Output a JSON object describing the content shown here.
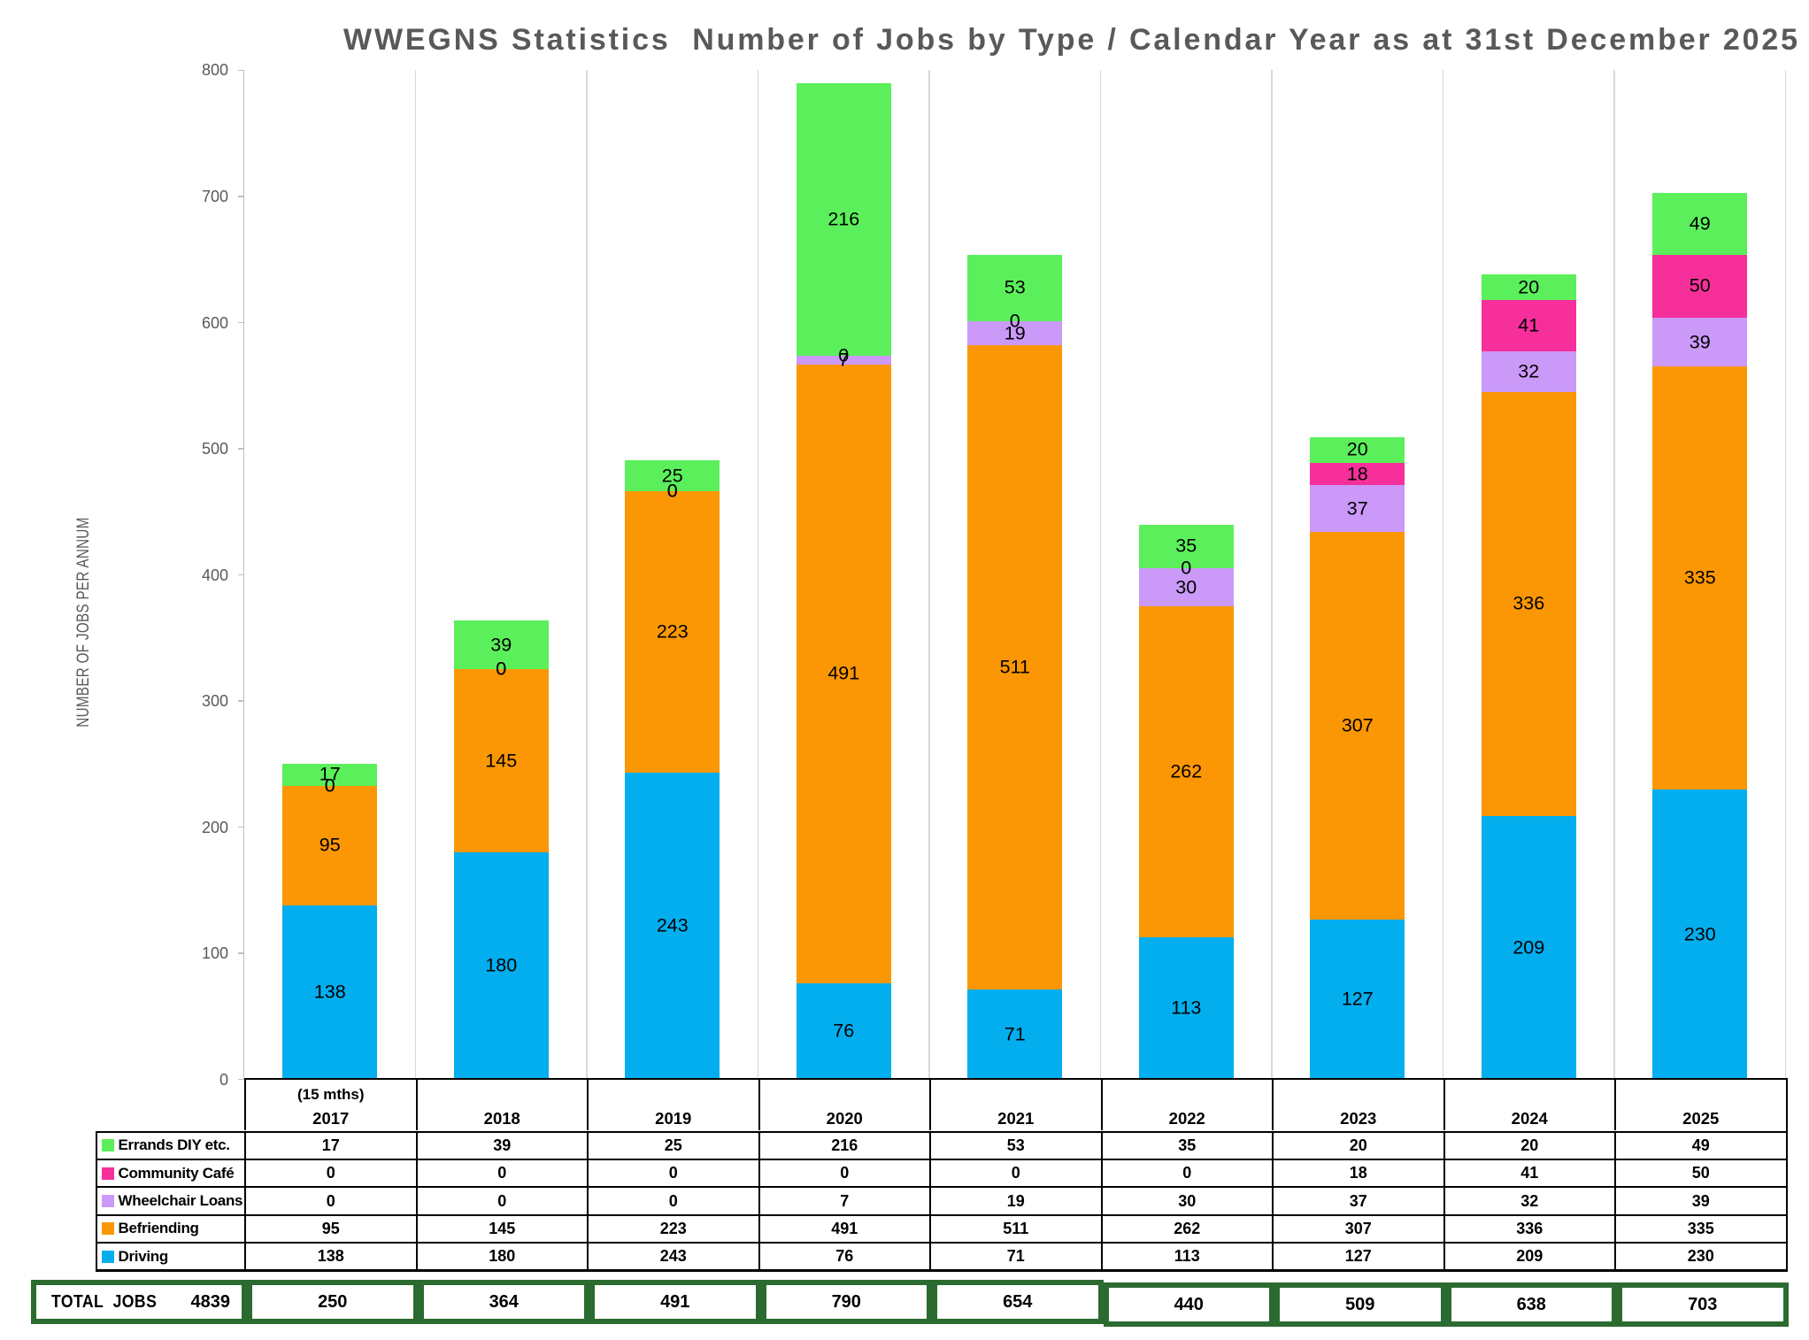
{
  "title": "WWEGNS Statistics  Number of Jobs by Type / Calendar Year as at 31st December 2025",
  "y_axis_title": "NUMBER OF JOBS PER ANNUM",
  "chart_data": {
    "type": "bar",
    "stacked": true,
    "title": "WWEGNS Statistics  Number of Jobs by Type / Calendar Year as at 31st December 2025",
    "xlabel": "",
    "ylabel": "NUMBER OF JOBS PER ANNUM",
    "ylim": [
      0,
      800
    ],
    "ytick_interval": 100,
    "grid": "vertical",
    "legend_position": "table-left",
    "data_labels": "all-segments-center",
    "categories": [
      {
        "label": "2017",
        "note": "(15 mths)"
      },
      {
        "label": "2018",
        "note": ""
      },
      {
        "label": "2019",
        "note": ""
      },
      {
        "label": "2020",
        "note": ""
      },
      {
        "label": "2021",
        "note": ""
      },
      {
        "label": "2022",
        "note": ""
      },
      {
        "label": "2023",
        "note": ""
      },
      {
        "label": "2024",
        "note": ""
      },
      {
        "label": "2025",
        "note": ""
      }
    ],
    "series": [
      {
        "name": "Driving",
        "color": "#02aeee",
        "values": [
          138,
          180,
          243,
          76,
          71,
          113,
          127,
          209,
          230
        ]
      },
      {
        "name": "Befriending",
        "color": "#fb9704",
        "values": [
          95,
          145,
          223,
          491,
          511,
          262,
          307,
          336,
          335
        ]
      },
      {
        "name": "Wheelchair Loans",
        "color": "#cb99f8",
        "values": [
          0,
          0,
          0,
          7,
          19,
          30,
          37,
          32,
          39
        ]
      },
      {
        "name": "Community Café",
        "color": "#f72f9b",
        "values": [
          0,
          0,
          0,
          0,
          0,
          0,
          18,
          41,
          50
        ]
      },
      {
        "name": "Errands DIY etc.",
        "color": "#5bf05b",
        "values": [
          17,
          39,
          25,
          216,
          53,
          35,
          20,
          20,
          49
        ]
      }
    ],
    "table_row_order": [
      "Errands DIY etc.",
      "Community Café",
      "Wheelchair Loans",
      "Befriending",
      "Driving"
    ],
    "totals": {
      "label": "TOTAL  JOBS",
      "grand_total": "4839",
      "values": [
        250,
        364,
        491,
        790,
        654,
        440,
        509,
        638,
        703
      ]
    }
  },
  "colors": {
    "title_text": "#595959",
    "axis_text": "#595959",
    "axis_line": "#bfbfbf",
    "gridline": "#d9d9d9",
    "table_border": "#000000",
    "total_border": "#2b6b30",
    "bar_label": "#000000"
  }
}
